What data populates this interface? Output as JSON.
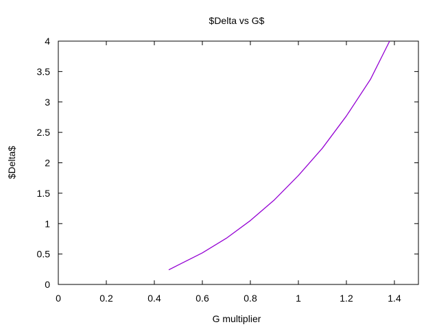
{
  "chart_data": {
    "type": "line",
    "title": "$Delta vs G$",
    "xlabel": "G multiplier",
    "ylabel": "$Delta$",
    "xlim": [
      0,
      1.5
    ],
    "ylim": [
      0,
      4
    ],
    "xticks": [
      0,
      0.2,
      0.4,
      0.6,
      0.8,
      1,
      1.2,
      1.4
    ],
    "xtick_labels": [
      "0",
      "0.2",
      "0.4",
      "0.6",
      "0.8",
      "1",
      "1.2",
      "1.4"
    ],
    "yticks": [
      0,
      0.5,
      1,
      1.5,
      2,
      2.5,
      3,
      3.5,
      4
    ],
    "ytick_labels": [
      "0",
      "0.5",
      "1",
      "1.5",
      "2",
      "2.5",
      "3",
      "3.5",
      "4"
    ],
    "grid": false,
    "legend": "none",
    "series": [
      {
        "color": "#9400d3",
        "x": [
          0.46,
          0.5,
          0.6,
          0.7,
          0.8,
          0.9,
          1.0,
          1.1,
          1.2,
          1.3,
          1.38
        ],
        "y": [
          0.24,
          0.32,
          0.52,
          0.76,
          1.05,
          1.39,
          1.79,
          2.24,
          2.77,
          3.37,
          4.0
        ]
      }
    ]
  }
}
